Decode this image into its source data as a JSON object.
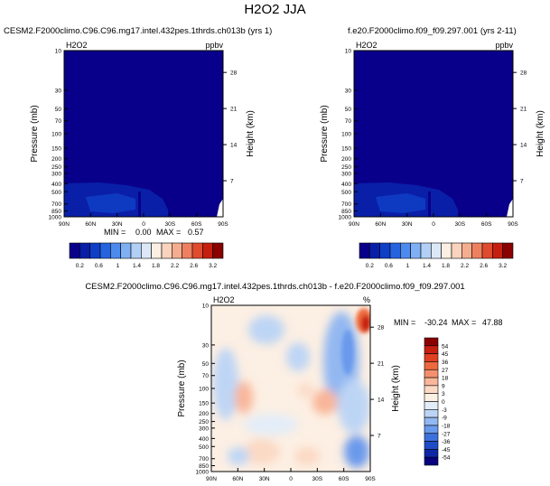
{
  "page_title": "H2O2 JJA",
  "chart_data": [
    {
      "type": "heatmap",
      "title": "CESM2.F2000climo.C96.C96.mg17.intel.432pes.1thrds.ch013b (yrs 1)",
      "variable": "H2O2",
      "units": "ppbv",
      "ylabel": "Pressure (mb)",
      "ylabel_right": "Height (km)",
      "x_ticks": [
        "90N",
        "60N",
        "30N",
        "0",
        "30S",
        "60S",
        "90S"
      ],
      "y_ticks": [
        "10",
        "30",
        "50",
        "70",
        "100",
        "150",
        "200",
        "250",
        "300",
        "400",
        "500",
        "700",
        "850",
        "1000"
      ],
      "y_ticks_right": [
        "28",
        "21",
        "14",
        "7"
      ],
      "ylim": [
        1000,
        10
      ],
      "y_scale": "log",
      "min_label": "MIN =",
      "min": "0.00",
      "max_label": "MAX =",
      "max": "0.57",
      "colorbar": {
        "orientation": "horizontal",
        "labels": [
          "0.2",
          "0.6",
          "1",
          "1.4",
          "1.8",
          "2.2",
          "2.6",
          "3.2"
        ],
        "colors": [
          "#08008a",
          "#0a1fa8",
          "#0f3fc7",
          "#2563df",
          "#4d8aee",
          "#7fb0f4",
          "#b2cff6",
          "#dce8f7",
          "#fbeee2",
          "#f9d3bd",
          "#f5ad8f",
          "#ee805f",
          "#e04b2e",
          "#c61f10",
          "#8a0000"
        ]
      }
    },
    {
      "type": "heatmap",
      "title": "f.e20.F2000climo.f09_f09.297.001 (yrs 2-11)",
      "variable": "H2O2",
      "units": "ppbv",
      "ylabel": "Pressure (mb)",
      "ylabel_right": "Height (km)",
      "x_ticks": [
        "90N",
        "60N",
        "30N",
        "0",
        "30S",
        "60S",
        "90S"
      ],
      "y_ticks": [
        "10",
        "30",
        "50",
        "70",
        "100",
        "150",
        "200",
        "250",
        "300",
        "400",
        "500",
        "700",
        "850",
        "1000"
      ],
      "y_ticks_right": [
        "28",
        "21",
        "14",
        "7"
      ],
      "ylim": [
        1000,
        10
      ],
      "y_scale": "log",
      "min_label": "MIN =",
      "min": "0.00",
      "max_label": "MAX =",
      "max": "0.57",
      "colorbar": {
        "orientation": "horizontal",
        "labels": [
          "0.2",
          "0.6",
          "1",
          "1.4",
          "1.8",
          "2.2",
          "2.6",
          "3.2"
        ],
        "colors": [
          "#08008a",
          "#0a1fa8",
          "#0f3fc7",
          "#2563df",
          "#4d8aee",
          "#7fb0f4",
          "#b2cff6",
          "#dce8f7",
          "#fbeee2",
          "#f9d3bd",
          "#f5ad8f",
          "#ee805f",
          "#e04b2e",
          "#c61f10",
          "#8a0000"
        ]
      }
    },
    {
      "type": "heatmap",
      "title": "CESM2.F2000climo.C96.C96.mg17.intel.432pes.1thrds.ch013b - f.e20.F2000climo.f09_f09.297.001",
      "variable": "H2O2",
      "units": "%",
      "ylabel": "Pressure (mb)",
      "ylabel_right": "Height (km)",
      "x_ticks": [
        "90N",
        "60N",
        "30N",
        "0",
        "30S",
        "60S",
        "90S"
      ],
      "y_ticks": [
        "10",
        "30",
        "50",
        "70",
        "100",
        "150",
        "200",
        "250",
        "300",
        "400",
        "500",
        "700",
        "850",
        "1000"
      ],
      "y_ticks_right": [
        "28",
        "21",
        "14",
        "7"
      ],
      "ylim": [
        1000,
        10
      ],
      "y_scale": "log",
      "min_label": "MIN =",
      "min": "-30.24",
      "max_label": "MAX =",
      "max": "47.88",
      "colorbar": {
        "orientation": "vertical",
        "labels": [
          "54",
          "45",
          "36",
          "27",
          "18",
          "9",
          "3",
          "0",
          "-3",
          "-9",
          "-18",
          "-27",
          "-36",
          "-45",
          "-54"
        ],
        "colors": [
          "#8a0000",
          "#c61f10",
          "#e0401f",
          "#ee6a3e",
          "#f5906d",
          "#f9b699",
          "#fbd9c4",
          "#fcefe3",
          "#e3edf8",
          "#bdd5f5",
          "#93b8f1",
          "#6a9aec",
          "#3c71dd",
          "#1e4cc7",
          "#0e27a6",
          "#07037e"
        ]
      }
    }
  ]
}
